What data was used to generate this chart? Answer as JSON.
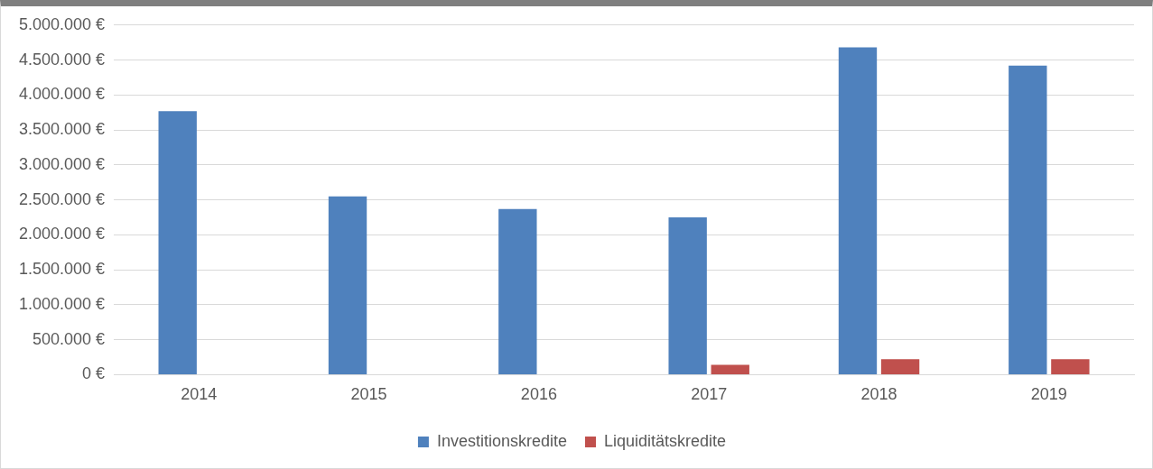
{
  "chart_data": {
    "type": "bar",
    "categories": [
      "2014",
      "2015",
      "2016",
      "2017",
      "2018",
      "2019"
    ],
    "series": [
      {
        "name": "Investitionskredite",
        "color": "#4f81bd",
        "values": [
          3770000,
          2550000,
          2370000,
          2250000,
          4680000,
          4420000
        ]
      },
      {
        "name": "Liquiditätskredite",
        "color": "#c0504d",
        "values": [
          0,
          0,
          0,
          140000,
          220000,
          220000
        ]
      }
    ],
    "ylim": [
      0,
      5000000
    ],
    "yticks": [
      {
        "value": 0,
        "label": "0 €"
      },
      {
        "value": 500000,
        "label": "500.000 €"
      },
      {
        "value": 1000000,
        "label": "1.000.000 €"
      },
      {
        "value": 1500000,
        "label": "1.500.000 €"
      },
      {
        "value": 2000000,
        "label": "2.000.000 €"
      },
      {
        "value": 2500000,
        "label": "2.500.000 €"
      },
      {
        "value": 3000000,
        "label": "3.000.000 €"
      },
      {
        "value": 3500000,
        "label": "3.500.000 €"
      },
      {
        "value": 4000000,
        "label": "4.000.000 €"
      },
      {
        "value": 4500000,
        "label": "4.500.000 €"
      },
      {
        "value": 5000000,
        "label": "5.000.000 €"
      }
    ],
    "grid": "y",
    "legend": "bottom"
  }
}
